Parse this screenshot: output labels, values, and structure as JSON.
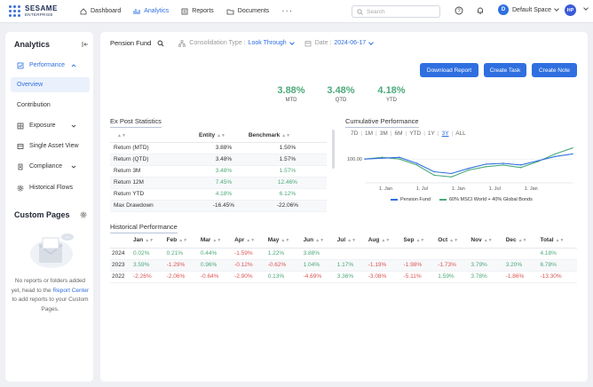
{
  "brand": {
    "line1": "SESAME",
    "line2": "ENTERPRISE"
  },
  "nav": {
    "dashboard": "Dashboard",
    "analytics": "Analytics",
    "reports": "Reports",
    "documents": "Documents",
    "more": "···"
  },
  "search": {
    "placeholder": "Search"
  },
  "space": {
    "initial": "D",
    "label": "Default Space"
  },
  "user": {
    "initials": "HP"
  },
  "sidebar": {
    "title": "Analytics",
    "performance": "Performance",
    "overview": "Overview",
    "contribution": "Contribution",
    "exposure": "Exposure",
    "single_asset": "Single Asset View",
    "compliance": "Compliance",
    "historical_flows": "Historical Flows",
    "custom_pages_title": "Custom Pages",
    "empty_text_1": "No reports or folders added yet, head to the",
    "empty_link": "Report Center",
    "empty_text_2": "to add reports to your Custom Pages."
  },
  "toolbar": {
    "portfolio": "Pension Fund",
    "consolidation_label": "Consolidation Type :",
    "consolidation_value": "Look Through",
    "date_label": "Date :",
    "date_value": "2024-06-17"
  },
  "buttons": {
    "download": "Download Report",
    "task": "Create Task",
    "note": "Create Note"
  },
  "kpis": [
    {
      "value": "3.88%",
      "label": "MTD"
    },
    {
      "value": "3.48%",
      "label": "QTD"
    },
    {
      "value": "4.18%",
      "label": "YTD"
    }
  ],
  "expost": {
    "title": "Ex Post Statistics",
    "headers": {
      "metric": "",
      "entity": "Entity",
      "benchmark": "Benchmark"
    },
    "rows": [
      {
        "label": "Return (MTD)",
        "entity": "3.88%",
        "benchmark": "1.50%"
      },
      {
        "label": "Return (QTD)",
        "entity": "3.48%",
        "benchmark": "1.57%"
      },
      {
        "label": "Return 3M",
        "entity": "3.48%",
        "benchmark": "1.57%"
      },
      {
        "label": "Return 12M",
        "entity": "7.45%",
        "benchmark": "12.46%"
      },
      {
        "label": "Return YTD",
        "entity": "4.18%",
        "benchmark": "6.12%"
      },
      {
        "label": "Max Drawdown",
        "entity": "-16.45%",
        "benchmark": "-22.06%"
      }
    ]
  },
  "cumulative": {
    "title": "Cumulative Performance",
    "ranges": [
      "7D",
      "1M",
      "3M",
      "6M",
      "YTD",
      "1Y",
      "3Y",
      "ALL"
    ],
    "active_range": "3Y",
    "ytick": "100.00",
    "xticks": [
      "1. Jan",
      "1. Jul",
      "1. Jan",
      "1. Jul",
      "1. Jan"
    ],
    "legend": [
      "Pension Fund",
      "60% MSCI World + 40% Global Bonds"
    ],
    "colors": {
      "fund": "#2f6fe0",
      "benchmark": "#4ca97a"
    }
  },
  "chart_data": {
    "type": "line",
    "title": "Cumulative Performance",
    "xlabel": "",
    "ylabel": "",
    "x": [
      "2021-06",
      "2021-09",
      "2021-12",
      "2022-03",
      "2022-06",
      "2022-09",
      "2022-12",
      "2023-03",
      "2023-06",
      "2023-09",
      "2023-12",
      "2024-03",
      "2024-06"
    ],
    "series": [
      {
        "name": "Pension Fund",
        "values": [
          100.0,
          100.5,
          101.0,
          97.5,
          92.5,
          91.5,
          94.5,
          97.0,
          97.5,
          96.5,
          99.0,
          101.5,
          103.0
        ]
      },
      {
        "name": "60% MSCI World + 40% Global Bonds",
        "values": [
          100.0,
          101.0,
          100.0,
          96.5,
          90.5,
          89.5,
          93.5,
          95.5,
          96.5,
          95.0,
          98.5,
          103.0,
          106.5
        ]
      }
    ],
    "yticks": [
      "100.00"
    ]
  },
  "historical": {
    "title": "Historical Performance",
    "headers": [
      "",
      "Jan",
      "Feb",
      "Mar",
      "Apr",
      "May",
      "Jun",
      "Jul",
      "Aug",
      "Sep",
      "Oct",
      "Nov",
      "Dec",
      "Total"
    ],
    "rows": [
      {
        "year": "2024",
        "values": [
          "0.02%",
          "0.21%",
          "0.44%",
          "-1.59%",
          "1.22%",
          "3.88%",
          "",
          "",
          "",
          "",
          "",
          "",
          "4.18%"
        ]
      },
      {
        "year": "2023",
        "values": [
          "3.59%",
          "-1.29%",
          "0.96%",
          "-0.12%",
          "-0.62%",
          "1.04%",
          "1.17%",
          "-1.19%",
          "-1.98%",
          "-1.73%",
          "3.79%",
          "3.20%",
          "6.78%"
        ]
      },
      {
        "year": "2022",
        "values": [
          "-2.26%",
          "-2.06%",
          "-0.64%",
          "-2.90%",
          "0.13%",
          "-4.69%",
          "3.36%",
          "-3.08%",
          "-5.11%",
          "1.59%",
          "3.78%",
          "-1.86%",
          "-13.30%"
        ]
      }
    ]
  }
}
